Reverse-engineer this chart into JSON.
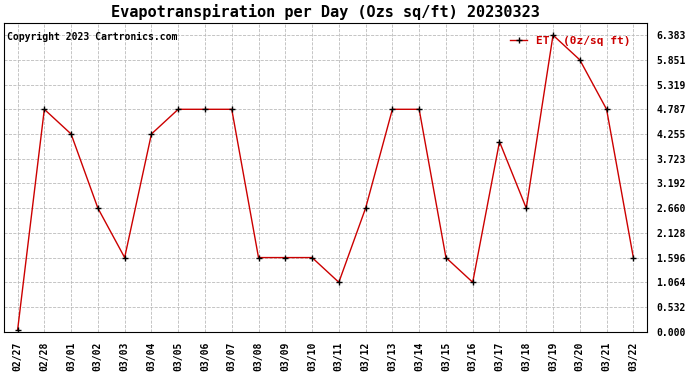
{
  "title": "Evapotranspiration per Day (Ozs sq/ft) 20230323",
  "copyright": "Copyright 2023 Cartronics.com",
  "legend_label": "ET  (0z/sq ft)",
  "dates": [
    "02/27",
    "02/28",
    "03/01",
    "03/02",
    "03/03",
    "03/04",
    "03/05",
    "03/06",
    "03/07",
    "03/08",
    "03/09",
    "03/10",
    "03/11",
    "03/12",
    "03/13",
    "03/14",
    "03/15",
    "03/16",
    "03/17",
    "03/18",
    "03/19",
    "03/20",
    "03/21",
    "03/22"
  ],
  "values": [
    0.03,
    4.787,
    4.255,
    2.66,
    1.596,
    4.255,
    4.787,
    4.787,
    4.787,
    1.596,
    1.596,
    1.596,
    1.064,
    2.66,
    4.787,
    4.787,
    1.596,
    1.064,
    4.09,
    2.66,
    6.383,
    5.851,
    4.787,
    1.596
  ],
  "line_color": "#cc0000",
  "marker_color": "#000000",
  "background_color": "#ffffff",
  "grid_color": "#bbbbbb",
  "yticks": [
    0.0,
    0.532,
    1.064,
    1.596,
    2.128,
    2.66,
    3.192,
    3.723,
    4.255,
    4.787,
    5.319,
    5.851,
    6.383
  ],
  "ylim": [
    0.0,
    6.65
  ],
  "title_fontsize": 11,
  "legend_color": "#cc0000",
  "copyright_color": "#000000",
  "copyright_fontsize": 7,
  "tick_fontsize": 7,
  "legend_fontsize": 8
}
